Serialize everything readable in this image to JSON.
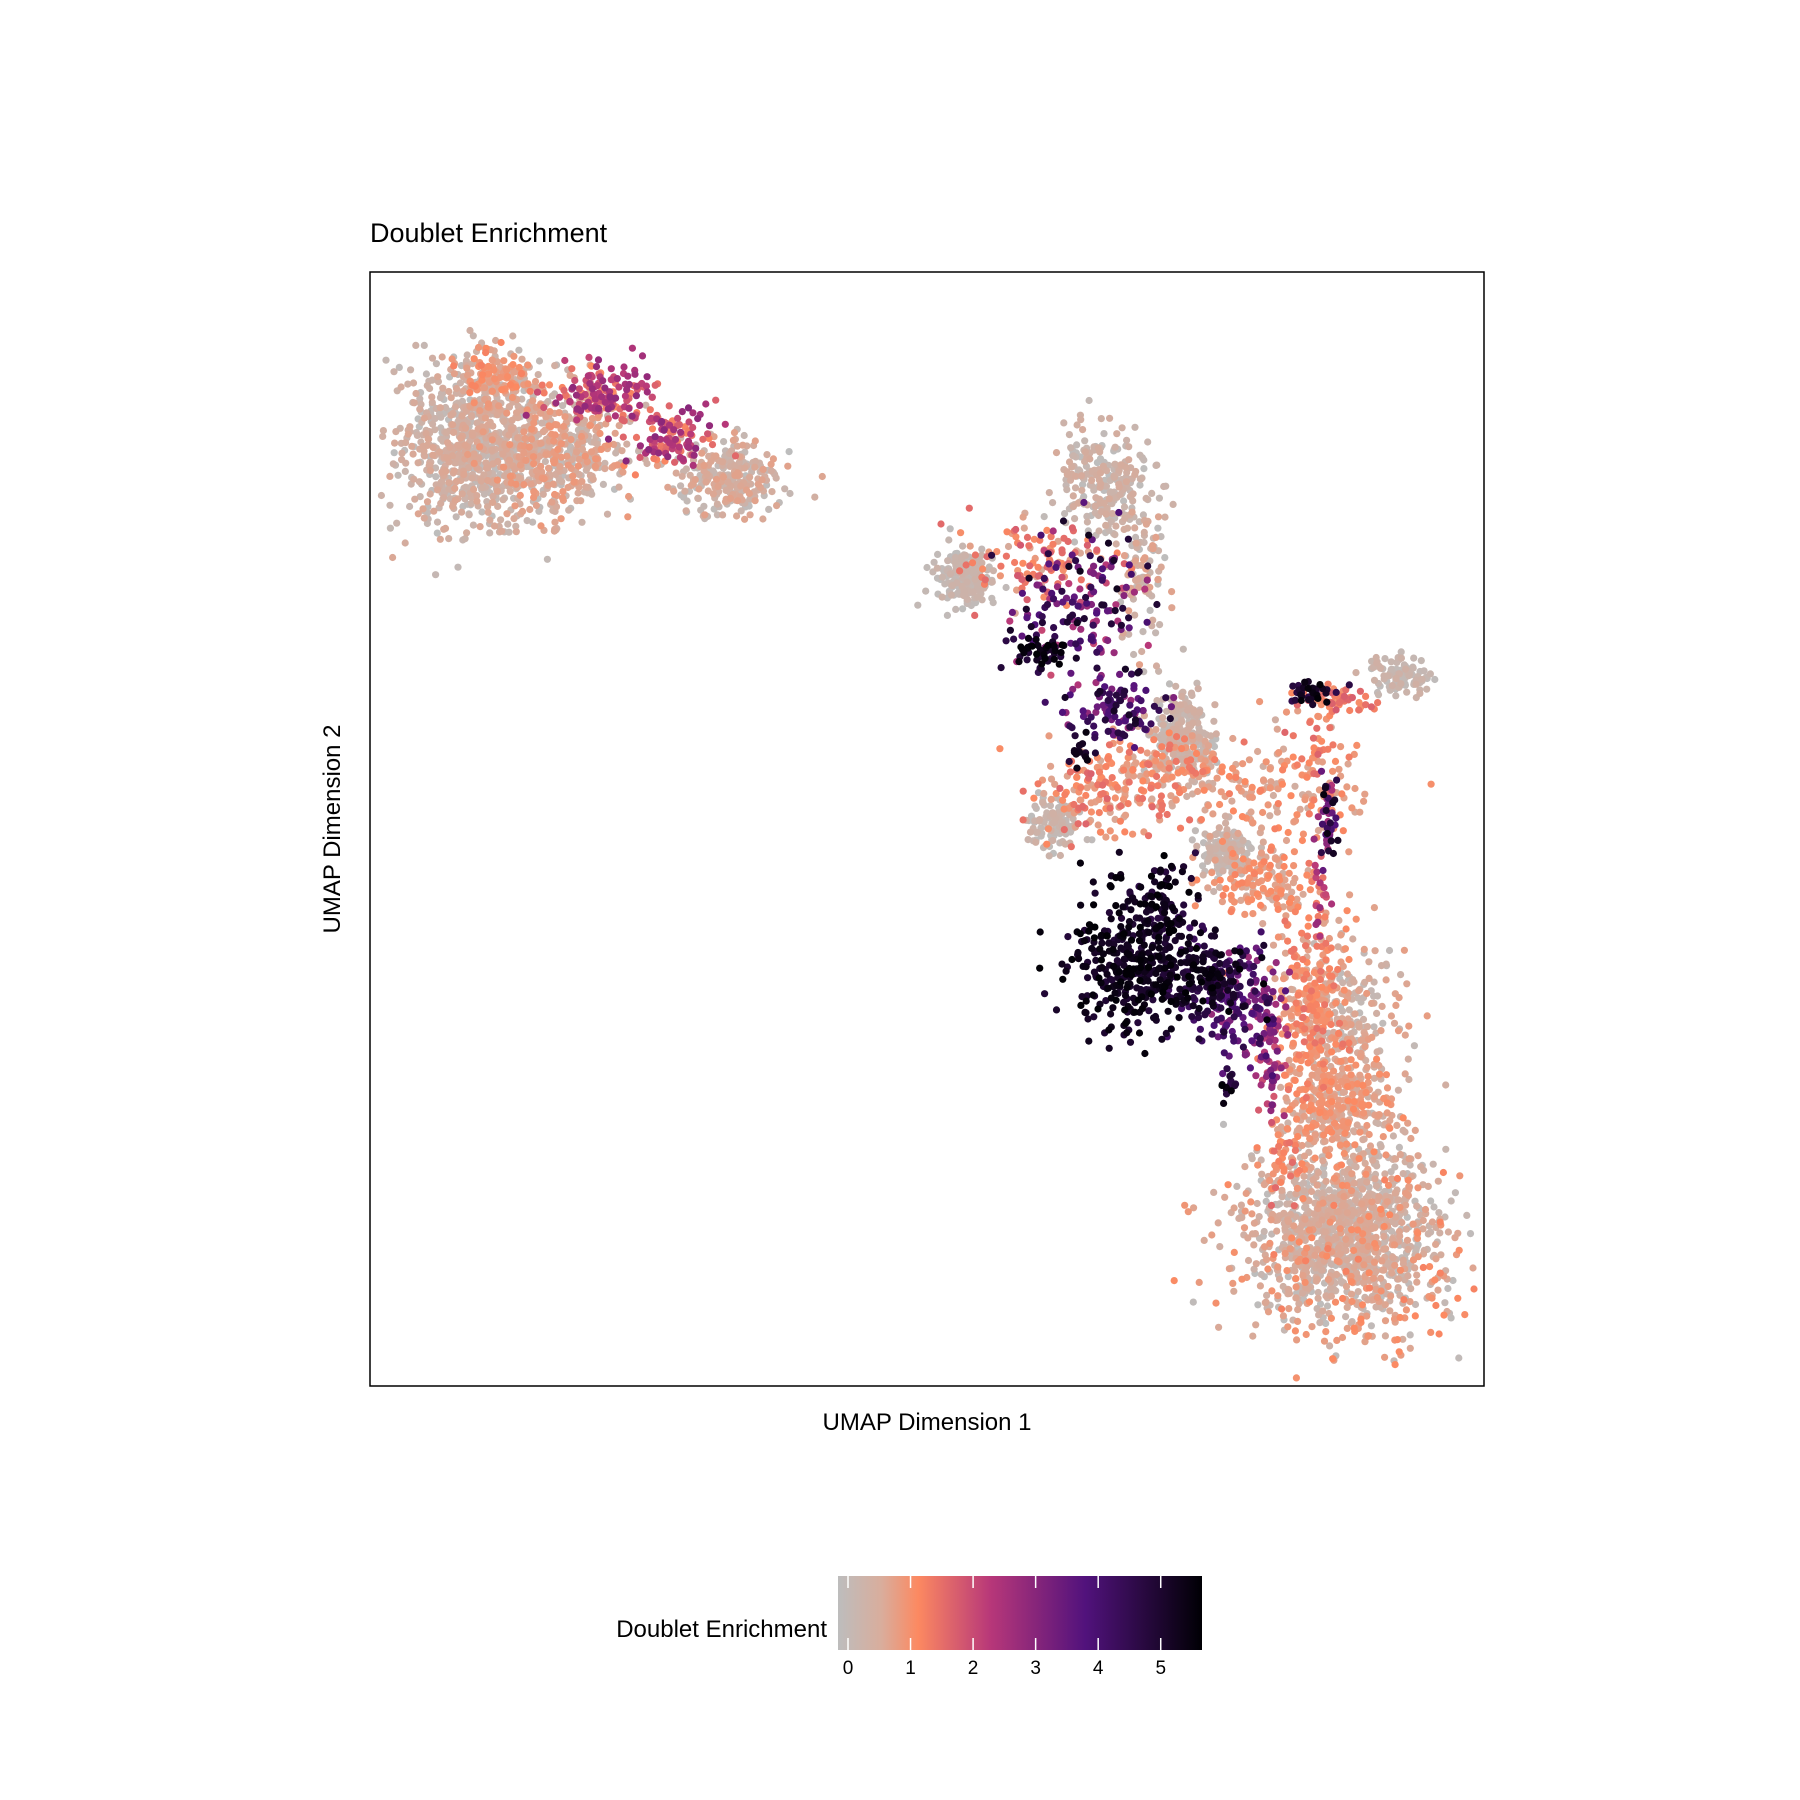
{
  "chart_data": {
    "type": "scatter",
    "title": "Doublet Enrichment",
    "xlabel": "UMAP Dimension 1",
    "ylabel": "UMAP Dimension 2",
    "x_ticks_shown": false,
    "y_ticks_shown": false,
    "grid": false,
    "xlim": [
      0,
      100
    ],
    "ylim": [
      0,
      100
    ],
    "color_scale": {
      "name": "Doublet Enrichment",
      "min": 0,
      "max": 5.5,
      "ticks": [
        0,
        1,
        2,
        3,
        4,
        5
      ],
      "tick_labels": [
        "0",
        "1",
        "2",
        "3",
        "4",
        "5"
      ],
      "colors": [
        "#bdbdbd",
        "#fc8961",
        "#b73779",
        "#51127c",
        "#000004"
      ],
      "legend_position": "bottom"
    },
    "clusters": [
      {
        "cx": 9.5,
        "cy": 84.5,
        "sx": 3.5,
        "sy": 3.5,
        "n": 900,
        "min": 0,
        "max": 0.5
      },
      {
        "cx": 17,
        "cy": 83.5,
        "sx": 3.2,
        "sy": 2.8,
        "n": 420,
        "min": 0,
        "max": 0.8
      },
      {
        "cx": 11,
        "cy": 90.5,
        "sx": 1.8,
        "sy": 1.5,
        "n": 140,
        "min": 0.2,
        "max": 1.1
      },
      {
        "cx": 21,
        "cy": 89,
        "sx": 2.5,
        "sy": 1.4,
        "n": 150,
        "min": 0.9,
        "max": 2.6
      },
      {
        "cx": 27,
        "cy": 85,
        "sx": 2.0,
        "sy": 1.2,
        "n": 110,
        "min": 1.0,
        "max": 2.7
      },
      {
        "cx": 32,
        "cy": 81.5,
        "sx": 2.4,
        "sy": 1.7,
        "n": 260,
        "min": 0,
        "max": 0.6
      },
      {
        "cx": 53.5,
        "cy": 72.5,
        "sx": 1.4,
        "sy": 1.4,
        "n": 180,
        "min": 0,
        "max": 0.25
      },
      {
        "cx": 66,
        "cy": 81,
        "sx": 2.0,
        "sy": 2.6,
        "n": 260,
        "min": 0,
        "max": 0.4
      },
      {
        "cx": 69.5,
        "cy": 72,
        "sx": 1.1,
        "sy": 3.4,
        "n": 90,
        "min": 0,
        "max": 0.6
      },
      {
        "cx": 60,
        "cy": 74,
        "sx": 3.0,
        "sy": 1.7,
        "n": 110,
        "min": 0.4,
        "max": 1.6
      },
      {
        "cx": 63.5,
        "cy": 70,
        "sx": 3.2,
        "sy": 3.4,
        "n": 160,
        "min": 1.7,
        "max": 5.2
      },
      {
        "cx": 60,
        "cy": 66,
        "sx": 1.2,
        "sy": 0.8,
        "n": 45,
        "min": 4.3,
        "max": 5.5
      },
      {
        "cx": 67,
        "cy": 61,
        "sx": 2.0,
        "sy": 1.6,
        "n": 100,
        "min": 2.4,
        "max": 5.0
      },
      {
        "cx": 64,
        "cy": 57,
        "sx": 0.6,
        "sy": 0.6,
        "n": 18,
        "min": 4.5,
        "max": 5.5
      },
      {
        "cx": 73,
        "cy": 58.5,
        "sx": 1.6,
        "sy": 1.9,
        "n": 220,
        "min": 0,
        "max": 0.35
      },
      {
        "cx": 70,
        "cy": 55,
        "sx": 3.5,
        "sy": 2.1,
        "n": 200,
        "min": 0.3,
        "max": 1.3
      },
      {
        "cx": 61.5,
        "cy": 50.5,
        "sx": 1.2,
        "sy": 1.1,
        "n": 110,
        "min": 0,
        "max": 0.3
      },
      {
        "cx": 65,
        "cy": 53,
        "sx": 2.5,
        "sy": 2.0,
        "n": 90,
        "min": 0.4,
        "max": 1.5
      },
      {
        "cx": 77,
        "cy": 48,
        "sx": 1.2,
        "sy": 1.2,
        "n": 160,
        "min": 0,
        "max": 0.3
      },
      {
        "cx": 81,
        "cy": 53,
        "sx": 4.0,
        "sy": 3.0,
        "n": 150,
        "min": 0.3,
        "max": 1.1
      },
      {
        "cx": 80,
        "cy": 45,
        "sx": 2.4,
        "sy": 1.6,
        "n": 130,
        "min": 0.3,
        "max": 1.1
      },
      {
        "cx": 92.5,
        "cy": 63.8,
        "sx": 1.3,
        "sy": 0.9,
        "n": 100,
        "min": 0,
        "max": 0.3
      },
      {
        "cx": 87,
        "cy": 61.5,
        "sx": 1.4,
        "sy": 0.6,
        "n": 50,
        "min": 0.8,
        "max": 1.6
      },
      {
        "cx": 84.5,
        "cy": 62.3,
        "sx": 0.9,
        "sy": 0.5,
        "n": 35,
        "min": 4.3,
        "max": 5.5
      },
      {
        "cx": 85,
        "cy": 57,
        "sx": 1.2,
        "sy": 3.0,
        "n": 40,
        "min": 0.6,
        "max": 1.5
      },
      {
        "cx": 86,
        "cy": 51,
        "sx": 0.4,
        "sy": 2.0,
        "n": 40,
        "min": 2.0,
        "max": 5.5
      },
      {
        "cx": 85.2,
        "cy": 44,
        "sx": 0.4,
        "sy": 2.0,
        "n": 25,
        "min": 0.8,
        "max": 2.5
      },
      {
        "cx": 68.5,
        "cy": 38,
        "sx": 3.0,
        "sy": 3.0,
        "n": 380,
        "min": 4.6,
        "max": 5.5
      },
      {
        "cx": 75,
        "cy": 36.5,
        "sx": 2.0,
        "sy": 2.0,
        "n": 160,
        "min": 3.8,
        "max": 5.5
      },
      {
        "cx": 71,
        "cy": 43,
        "sx": 1.6,
        "sy": 2.0,
        "n": 80,
        "min": 4.3,
        "max": 5.5
      },
      {
        "cx": 78.5,
        "cy": 34,
        "sx": 1.5,
        "sy": 2.4,
        "n": 120,
        "min": 2.2,
        "max": 4.5
      },
      {
        "cx": 81,
        "cy": 30,
        "sx": 0.8,
        "sy": 3.0,
        "n": 60,
        "min": 1.5,
        "max": 3.2
      },
      {
        "cx": 77,
        "cy": 27,
        "sx": 0.6,
        "sy": 0.6,
        "n": 15,
        "min": 4.3,
        "max": 5.5
      },
      {
        "cx": 84.5,
        "cy": 34,
        "sx": 1.6,
        "sy": 4.0,
        "n": 300,
        "min": 0.4,
        "max": 1.3
      },
      {
        "cx": 88,
        "cy": 33,
        "sx": 2.2,
        "sy": 3.5,
        "n": 200,
        "min": 0,
        "max": 0.7
      },
      {
        "cx": 87,
        "cy": 25,
        "sx": 2.5,
        "sy": 2.5,
        "n": 300,
        "min": 0.2,
        "max": 1.0
      },
      {
        "cx": 87.5,
        "cy": 14,
        "sx": 4.0,
        "sy": 3.8,
        "n": 1100,
        "min": 0,
        "max": 0.5
      },
      {
        "cx": 88.5,
        "cy": 12.5,
        "sx": 6.0,
        "sy": 4.6,
        "n": 300,
        "min": 0.4,
        "max": 1.1
      },
      {
        "cx": 82,
        "cy": 20,
        "sx": 0.8,
        "sy": 2.0,
        "n": 40,
        "min": 0.7,
        "max": 1.4
      }
    ]
  }
}
